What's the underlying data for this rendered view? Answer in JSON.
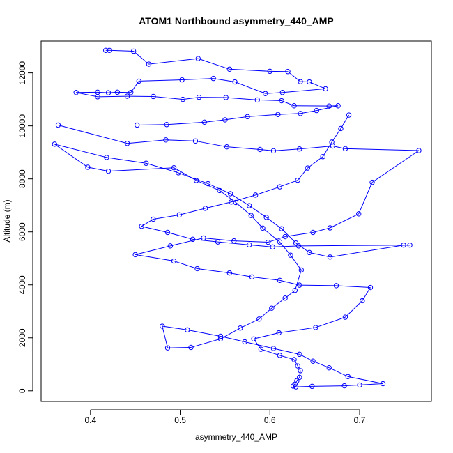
{
  "chart_data": {
    "type": "line",
    "title": "ATOM1 Northbound asymmetry_440_AMP",
    "xlabel": "asymmetry_440_AMP",
    "ylabel": "Altitude (m)",
    "xlim": [
      0.345,
      0.78
    ],
    "ylim": [
      -400,
      13200
    ],
    "xticks": [
      0.4,
      0.5,
      0.6,
      0.7
    ],
    "yticks": [
      0,
      2000,
      4000,
      6000,
      8000,
      10000,
      12000
    ],
    "grid": false,
    "legend": "none",
    "marker": "open-circle",
    "color": "#0000ff",
    "series": [
      {
        "points": [
          [
            0.417,
            12850
          ],
          [
            0.421,
            12850
          ],
          [
            0.448,
            12820
          ],
          [
            0.465,
            12330
          ],
          [
            0.52,
            12540
          ],
          [
            0.555,
            12140
          ],
          [
            0.6,
            12060
          ],
          [
            0.62,
            12050
          ],
          [
            0.634,
            11670
          ],
          [
            0.644,
            11660
          ],
          [
            0.662,
            11400
          ],
          [
            0.614,
            11260
          ],
          [
            0.595,
            11220
          ],
          [
            0.561,
            11660
          ],
          [
            0.537,
            11790
          ],
          [
            0.502,
            11740
          ],
          [
            0.454,
            11690
          ],
          [
            0.445,
            11260
          ],
          [
            0.43,
            11270
          ],
          [
            0.42,
            11250
          ],
          [
            0.408,
            11270
          ],
          [
            0.384,
            11260
          ],
          [
            0.408,
            11100
          ],
          [
            0.441,
            11120
          ],
          [
            0.47,
            11110
          ],
          [
            0.503,
            11000
          ],
          [
            0.521,
            11080
          ],
          [
            0.551,
            11070
          ],
          [
            0.586,
            10980
          ],
          [
            0.613,
            10950
          ],
          [
            0.627,
            10760
          ],
          [
            0.666,
            10750
          ],
          [
            0.676,
            10760
          ],
          [
            0.652,
            10580
          ],
          [
            0.634,
            10470
          ],
          [
            0.609,
            10430
          ],
          [
            0.575,
            10350
          ],
          [
            0.55,
            10230
          ],
          [
            0.527,
            10140
          ],
          [
            0.485,
            10050
          ],
          [
            0.452,
            10030
          ],
          [
            0.364,
            10030
          ],
          [
            0.441,
            9340
          ],
          [
            0.484,
            9470
          ],
          [
            0.517,
            9430
          ],
          [
            0.552,
            9210
          ],
          [
            0.589,
            9110
          ],
          [
            0.604,
            9060
          ],
          [
            0.633,
            9130
          ],
          [
            0.67,
            9240
          ],
          [
            0.684,
            9140
          ],
          [
            0.766,
            9070
          ],
          [
            0.714,
            7870
          ],
          [
            0.699,
            6680
          ],
          [
            0.667,
            6150
          ],
          [
            0.648,
            5980
          ],
          [
            0.617,
            5820
          ],
          [
            0.598,
            5610
          ],
          [
            0.56,
            5660
          ],
          [
            0.526,
            5770
          ],
          [
            0.489,
            5470
          ],
          [
            0.45,
            5140
          ],
          [
            0.493,
            4900
          ],
          [
            0.519,
            4610
          ],
          [
            0.555,
            4450
          ],
          [
            0.58,
            4300
          ],
          [
            0.611,
            4170
          ],
          [
            0.633,
            3990
          ],
          [
            0.674,
            3970
          ],
          [
            0.712,
            3900
          ],
          [
            0.703,
            3400
          ],
          [
            0.684,
            2780
          ],
          [
            0.651,
            2390
          ],
          [
            0.61,
            2190
          ],
          [
            0.582,
            1960
          ],
          [
            0.59,
            1570
          ],
          [
            0.611,
            1340
          ],
          [
            0.627,
            1180
          ],
          [
            0.631,
            940
          ],
          [
            0.634,
            760
          ],
          [
            0.633,
            510
          ],
          [
            0.63,
            380
          ],
          [
            0.628,
            250
          ],
          [
            0.626,
            180
          ],
          [
            0.629,
            150
          ],
          [
            0.647,
            170
          ],
          [
            0.683,
            190
          ],
          [
            0.7,
            220
          ],
          [
            0.726,
            270
          ],
          [
            0.687,
            540
          ],
          [
            0.666,
            870
          ],
          [
            0.648,
            1120
          ],
          [
            0.633,
            1380
          ],
          [
            0.604,
            1600
          ],
          [
            0.572,
            1850
          ],
          [
            0.545,
            2060
          ],
          [
            0.508,
            2300
          ],
          [
            0.48,
            2440
          ],
          [
            0.486,
            1620
          ],
          [
            0.512,
            1640
          ],
          [
            0.545,
            1960
          ],
          [
            0.567,
            2370
          ],
          [
            0.588,
            2710
          ],
          [
            0.602,
            3120
          ],
          [
            0.617,
            3500
          ],
          [
            0.628,
            3790
          ],
          [
            0.635,
            4560
          ],
          [
            0.623,
            5120
          ],
          [
            0.611,
            5620
          ],
          [
            0.592,
            6140
          ],
          [
            0.579,
            6620
          ],
          [
            0.562,
            7110
          ],
          [
            0.544,
            7560
          ],
          [
            0.518,
            7940
          ],
          [
            0.493,
            8420
          ],
          [
            0.42,
            8290
          ],
          [
            0.397,
            8440
          ],
          [
            0.36,
            9310
          ],
          [
            0.418,
            8810
          ],
          [
            0.462,
            8590
          ],
          [
            0.498,
            8230
          ],
          [
            0.531,
            7820
          ],
          [
            0.556,
            7440
          ],
          [
            0.577,
            6990
          ],
          [
            0.596,
            6550
          ],
          [
            0.613,
            6120
          ],
          [
            0.629,
            5580
          ],
          [
            0.644,
            5220
          ],
          [
            0.667,
            5050
          ],
          [
            0.749,
            5500
          ],
          [
            0.756,
            5500
          ],
          [
            0.632,
            5470
          ],
          [
            0.603,
            5430
          ],
          [
            0.577,
            5510
          ],
          [
            0.542,
            5620
          ],
          [
            0.514,
            5720
          ],
          [
            0.486,
            5980
          ],
          [
            0.457,
            6210
          ],
          [
            0.47,
            6480
          ],
          [
            0.499,
            6640
          ],
          [
            0.528,
            6890
          ],
          [
            0.557,
            7130
          ],
          [
            0.584,
            7390
          ],
          [
            0.611,
            7700
          ],
          [
            0.631,
            7950
          ],
          [
            0.642,
            8410
          ],
          [
            0.659,
            8840
          ],
          [
            0.669,
            9390
          ],
          [
            0.679,
            9900
          ],
          [
            0.688,
            10410
          ]
        ]
      }
    ]
  }
}
